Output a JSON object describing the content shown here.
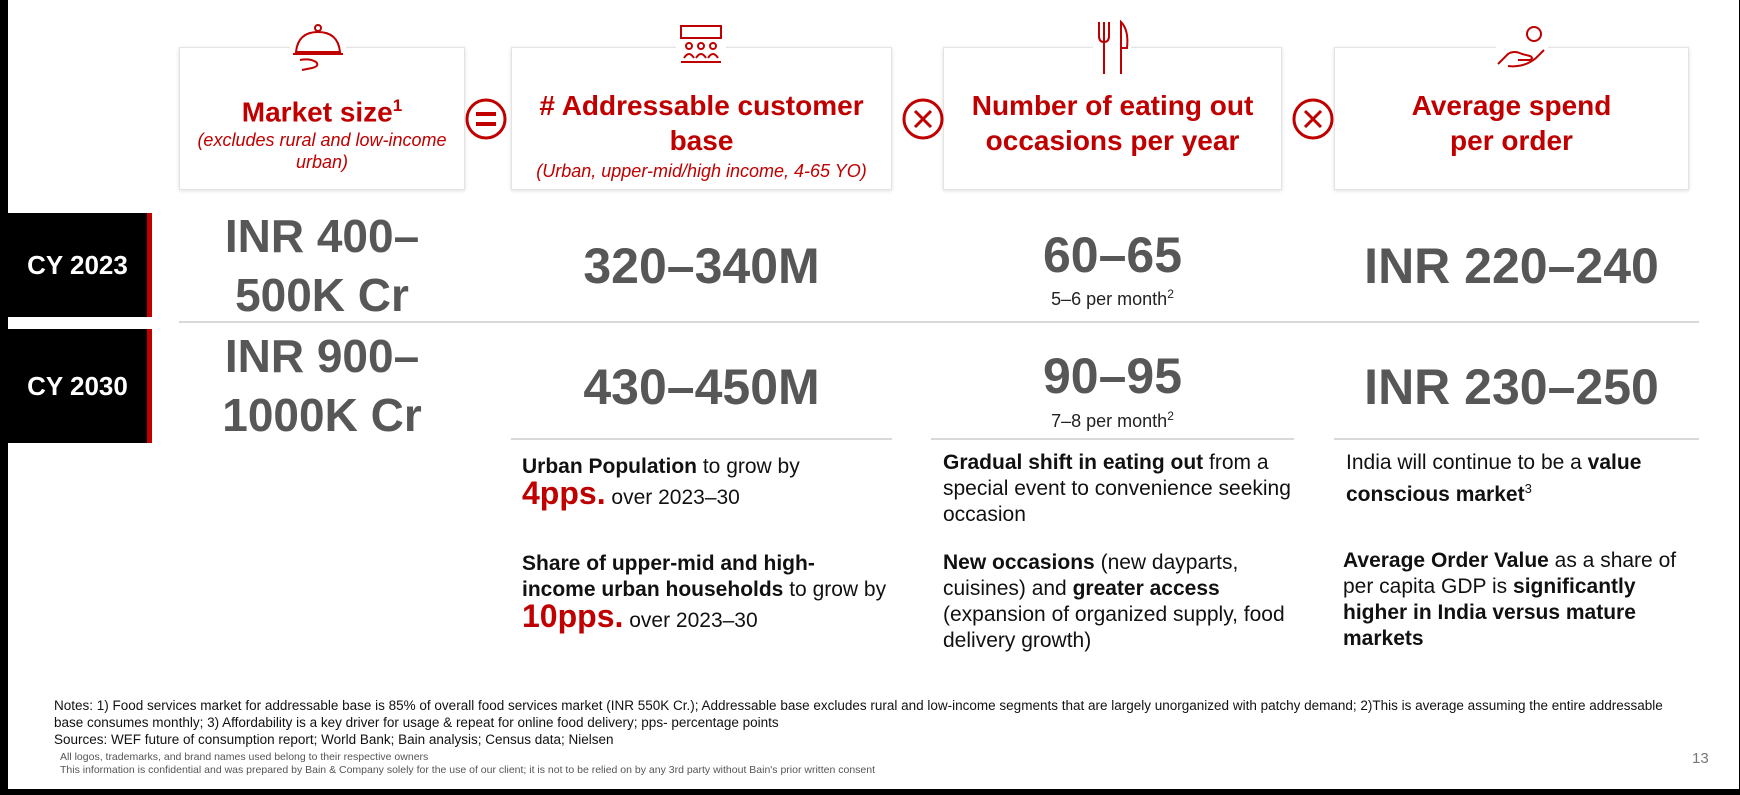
{
  "headers": {
    "market_size": {
      "title": "Market size",
      "sup": "1",
      "subtitle": "(excludes rural and low-income urban)"
    },
    "customer_base": {
      "title": "# Addressable customer base",
      "subtitle": "(Urban, upper-mid/high income, 4-65 YO)"
    },
    "occasions": {
      "title": "Number of eating out occasions per year"
    },
    "spend": {
      "title": "Average spend per order"
    }
  },
  "rows": [
    {
      "year": "CY 2023",
      "market_size_line1": "INR 400–",
      "market_size_line2": "500K Cr",
      "customer_base": "320–340M",
      "occasions": "60–65",
      "occasions_note": "5–6 per month",
      "occasions_sup": "2",
      "spend": "INR 220–240"
    },
    {
      "year": "CY 2030",
      "market_size_line1": "INR 900–",
      "market_size_line2": "1000K Cr",
      "customer_base": "430–450M",
      "occasions": "90–95",
      "occasions_note": "7–8 per month",
      "occasions_sup": "2",
      "spend": "INR 230–250"
    }
  ],
  "drivers": {
    "customer_base": [
      {
        "bold": "Urban Population",
        "text": "to grow by",
        "highlight": "4pps.",
        "tail": "over 2023–30"
      },
      {
        "bold": "Share of upper-mid and high-income urban households",
        "text": "to grow by",
        "highlight": "10pps.",
        "tail": "over 2023–30"
      }
    ],
    "occasions": [
      {
        "bold": "Gradual shift in eating out",
        "text": "from a special event to convenience seeking occasion"
      },
      {
        "bold1": "New occasions",
        "text1": "(new dayparts, cuisines) and",
        "bold2": "greater access",
        "text2": "(expansion of organized supply, food delivery growth)"
      }
    ],
    "spend": [
      {
        "text": "India will continue to be a",
        "bold": "value conscious market",
        "sup": "3"
      },
      {
        "bold1": "Average Order Value",
        "text1": "as a share of per capita GDP is",
        "bold2": "significantly higher in India versus mature markets"
      }
    ]
  },
  "footer": {
    "notes": "Notes: 1) Food services market for addressable base is 85% of overall food services market (INR 550K Cr.); Addressable base excludes rural and low-income segments that are largely unorganized with patchy demand; 2)This is average assuming the entire addressable base consumes monthly; 3) Affordability is a key driver for usage & repeat for online food delivery; pps- percentage points",
    "sources": "Sources: WEF future of consumption report; World Bank; Bain analysis; Census data; Nielsen",
    "logos_disclaimer": "All logos, trademarks, and brand names used belong to their respective owners",
    "confidential": "This information is confidential and was prepared by Bain & Company solely for the use of our client; it is not to be relied on by any 3rd party without Bain's prior written consent",
    "page_number": "13"
  },
  "colors": {
    "accent": "#c00000",
    "value_grey": "#575757",
    "year_bg": "#000000"
  }
}
